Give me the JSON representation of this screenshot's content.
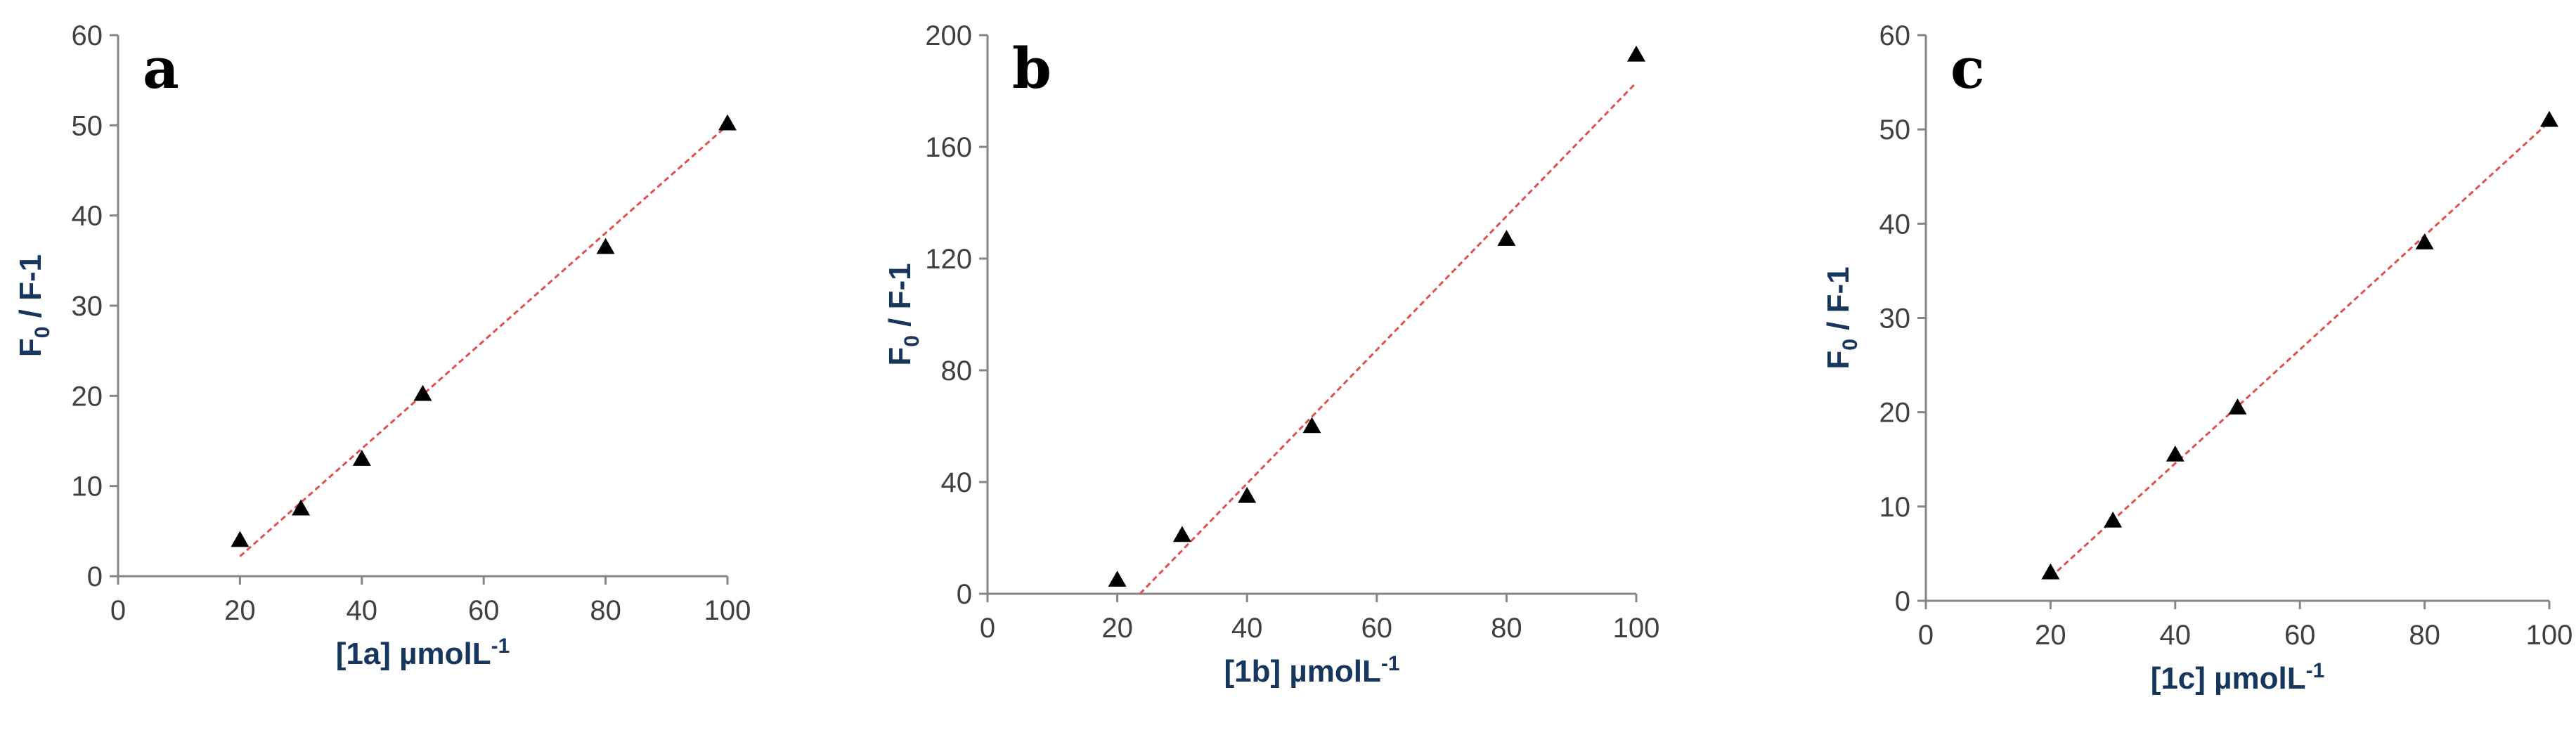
{
  "chart_data": [
    {
      "type": "scatter",
      "panel": "a",
      "xlabel": "[1a] µmolL",
      "xlabel_sup": "-1",
      "ylabel_main": "F",
      "ylabel_sub": "0",
      "ylabel_rest": " / F-1",
      "xlim": [
        0,
        100
      ],
      "ylim": [
        0,
        60
      ],
      "xticks": [
        0,
        20,
        40,
        60,
        80,
        100
      ],
      "yticks": [
        0,
        10,
        20,
        30,
        40,
        50,
        60
      ],
      "x": [
        20,
        30,
        40,
        50,
        80,
        100
      ],
      "y": [
        4,
        7.5,
        13,
        20.2,
        36.5,
        50.2
      ],
      "fit": {
        "x": [
          20,
          100
        ],
        "y": [
          2.2,
          50.0
        ]
      },
      "marker_color": "#000000",
      "fit_color": "#e05050"
    },
    {
      "type": "scatter",
      "panel": "b",
      "xlabel": "[1b] µmolL",
      "xlabel_sup": "-1",
      "ylabel_main": "F",
      "ylabel_sub": "0",
      "ylabel_rest": " / F-1",
      "xlim": [
        0,
        100
      ],
      "ylim": [
        0,
        200
      ],
      "xticks": [
        0,
        20,
        40,
        60,
        80,
        100
      ],
      "yticks": [
        0,
        40,
        80,
        120,
        160,
        200
      ],
      "x": [
        20,
        30,
        40,
        50,
        80,
        100
      ],
      "y": [
        5,
        21,
        35,
        60,
        127,
        193
      ],
      "fit": {
        "x": [
          23.5,
          100
        ],
        "y": [
          0,
          183
        ]
      },
      "marker_color": "#000000",
      "fit_color": "#e05050"
    },
    {
      "type": "scatter",
      "panel": "c",
      "xlabel": "[1c] µmolL",
      "xlabel_sup": "-1",
      "ylabel_main": "F",
      "ylabel_sub": "0",
      "ylabel_rest": " / F-1",
      "xlim": [
        0,
        100
      ],
      "ylim": [
        0,
        60
      ],
      "xticks": [
        0,
        20,
        40,
        60,
        80,
        100
      ],
      "yticks": [
        0,
        10,
        20,
        30,
        40,
        50,
        60
      ],
      "x": [
        20,
        30,
        40,
        50,
        80,
        100
      ],
      "y": [
        3,
        8.5,
        15.5,
        20.5,
        38,
        51
      ],
      "fit": {
        "x": [
          20,
          100
        ],
        "y": [
          2.5,
          50.8
        ]
      },
      "marker_color": "#000000",
      "fit_color": "#e05050"
    }
  ]
}
